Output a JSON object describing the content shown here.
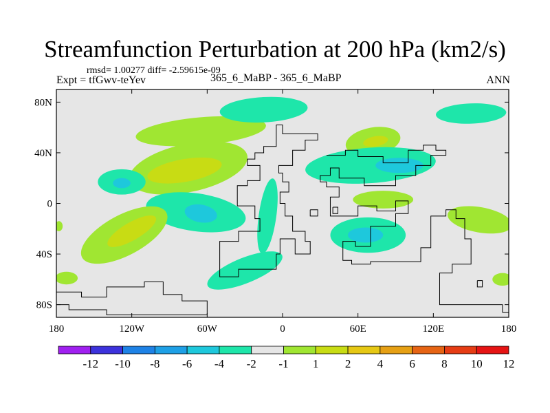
{
  "chart_data": {
    "type": "contour-map",
    "title": "Streamfunction Perturbation at 200 hPa (km2/s)",
    "stats_line": "rmsd= 1.00277 diff= -2.59615e-09",
    "experiment_label": "Expt = tfGwv-teYev",
    "center_label": "365_6_MaBP - 365_6_MaBP",
    "season_label": "ANN",
    "x_axis": {
      "range": [
        -180,
        180
      ],
      "ticks": [
        {
          "value": -180,
          "label": "180"
        },
        {
          "value": -120,
          "label": "120W"
        },
        {
          "value": -60,
          "label": "60W"
        },
        {
          "value": 0,
          "label": "0"
        },
        {
          "value": 60,
          "label": "60E"
        },
        {
          "value": 120,
          "label": "120E"
        },
        {
          "value": 180,
          "label": "180"
        }
      ]
    },
    "y_axis": {
      "range": [
        -90,
        90
      ],
      "ticks": [
        {
          "value": 80,
          "label": "80N"
        },
        {
          "value": 40,
          "label": "40N"
        },
        {
          "value": 0,
          "label": "0"
        },
        {
          "value": -40,
          "label": "40S"
        },
        {
          "value": -80,
          "label": "80S"
        }
      ]
    },
    "colorbar": {
      "colors": [
        "#a020f0",
        "#3c32dc",
        "#1e82e6",
        "#1ea0e6",
        "#1ec8dc",
        "#1ee6aa",
        "#e6e6e6",
        "#a0e632",
        "#c8dc14",
        "#e6c814",
        "#e6a014",
        "#e66414",
        "#e63c14",
        "#e61414"
      ],
      "labels": [
        "-12",
        "-10",
        "-8",
        "-6",
        "-4",
        "-2",
        "-1",
        "1",
        "2",
        "4",
        "6",
        "8",
        "10",
        "12"
      ]
    },
    "regions": [
      {
        "name": "green-north-atlantic",
        "level": "1..2",
        "color": "#a0e632",
        "cx": -65,
        "cy": 57,
        "rx": 52,
        "ry": 11,
        "angle": -5
      },
      {
        "name": "teal-north-pacific-arc",
        "level": "-1..-2",
        "color": "#1ee6aa",
        "cx": -15,
        "cy": 74,
        "rx": 35,
        "ry": 10,
        "angle": -3
      },
      {
        "name": "green-central-band",
        "level": "1..2",
        "color": "#a0e632",
        "cx": -75,
        "cy": 28,
        "rx": 48,
        "ry": 19,
        "angle": -12
      },
      {
        "name": "yellow-central-core",
        "level": "2..4",
        "color": "#c8dc14",
        "cx": -78,
        "cy": 26,
        "rx": 30,
        "ry": 9,
        "angle": -10
      },
      {
        "name": "teal-west-blob",
        "level": "-1..-2",
        "color": "#1ee6aa",
        "cx": -128,
        "cy": 17,
        "rx": 19,
        "ry": 10,
        "angle": 0
      },
      {
        "name": "cyan-west-core",
        "level": "-2..-4",
        "color": "#1ec8dc",
        "cx": -128,
        "cy": 16,
        "rx": 7,
        "ry": 4,
        "angle": 0
      },
      {
        "name": "teal-equatorial",
        "level": "-1..-2",
        "color": "#1ee6aa",
        "cx": -69,
        "cy": -7,
        "rx": 40,
        "ry": 15,
        "angle": 8
      },
      {
        "name": "cyan-equatorial-core",
        "level": "-2..-4",
        "color": "#1ec8dc",
        "cx": -65,
        "cy": -8,
        "rx": 13,
        "ry": 7,
        "angle": 10
      },
      {
        "name": "green-southwest",
        "level": "1..2",
        "color": "#a0e632",
        "cx": -126,
        "cy": -25,
        "rx": 38,
        "ry": 16,
        "angle": -28
      },
      {
        "name": "yellow-southwest-core",
        "level": "2..4",
        "color": "#c8dc14",
        "cx": -120,
        "cy": -22,
        "rx": 22,
        "ry": 7,
        "angle": -30
      },
      {
        "name": "teal-atlantic-band",
        "level": "-1..-2",
        "color": "#1ee6aa",
        "cx": -12,
        "cy": -10,
        "rx": 7,
        "ry": 30,
        "angle": 8
      },
      {
        "name": "teal-south-atlantic",
        "level": "-1..-2",
        "color": "#1ee6aa",
        "cx": -30,
        "cy": -53,
        "rx": 32,
        "ry": 10,
        "angle": -22
      },
      {
        "name": "green-east-north",
        "level": "1..2",
        "color": "#a0e632",
        "cx": 72,
        "cy": 49,
        "rx": 22,
        "ry": 11,
        "angle": -10
      },
      {
        "name": "yellow-east-north-core",
        "level": "2..4",
        "color": "#c8dc14",
        "cx": 74,
        "cy": 49,
        "rx": 10,
        "ry": 4,
        "angle": -10
      },
      {
        "name": "teal-east-asia",
        "level": "-1..-2",
        "color": "#1ee6aa",
        "cx": 70,
        "cy": 30,
        "rx": 52,
        "ry": 14,
        "angle": -4
      },
      {
        "name": "cyan-east-asia-core",
        "level": "-2..-4",
        "color": "#1ec8dc",
        "cx": 93,
        "cy": 30,
        "rx": 19,
        "ry": 6,
        "angle": 0
      },
      {
        "name": "teal-north-east-arc",
        "level": "-1..-2",
        "color": "#1ee6aa",
        "cx": 150,
        "cy": 71,
        "rx": 28,
        "ry": 8,
        "angle": -2
      },
      {
        "name": "green-indian",
        "level": "1..2",
        "color": "#a0e632",
        "cx": 80,
        "cy": 3,
        "rx": 24,
        "ry": 7,
        "angle": 0
      },
      {
        "name": "teal-indian-south",
        "level": "-1..-2",
        "color": "#1ee6aa",
        "cx": 68,
        "cy": -25,
        "rx": 30,
        "ry": 14,
        "angle": 0
      },
      {
        "name": "cyan-indian-south-core",
        "level": "-2..-4",
        "color": "#1ec8dc",
        "cx": 66,
        "cy": -25,
        "rx": 14,
        "ry": 6,
        "angle": 0
      },
      {
        "name": "green-australia-east",
        "level": "1..2",
        "color": "#a0e632",
        "cx": 157,
        "cy": -13,
        "rx": 26,
        "ry": 10,
        "angle": 10
      },
      {
        "name": "green-left-edge",
        "level": "1..2",
        "color": "#a0e632",
        "cx": -178,
        "cy": -18,
        "rx": 3,
        "ry": 4,
        "angle": 0
      },
      {
        "name": "green-southwest-edge",
        "level": "1..2",
        "color": "#a0e632",
        "cx": -172,
        "cy": -59,
        "rx": 9,
        "ry": 5,
        "angle": 0
      },
      {
        "name": "green-southeast-edge",
        "level": "1..2",
        "color": "#a0e632",
        "cx": 175,
        "cy": -60,
        "rx": 8,
        "ry": 5,
        "angle": 0
      }
    ],
    "coastlines": [
      {
        "name": "coastline-americas",
        "points": [
          [
            -5,
            51
          ],
          [
            -5,
            45
          ],
          [
            -15,
            45
          ],
          [
            -15,
            40
          ],
          [
            -22,
            40
          ],
          [
            -22,
            35
          ],
          [
            -28,
            35
          ],
          [
            -28,
            30
          ],
          [
            -18,
            30
          ],
          [
            -18,
            18
          ],
          [
            -28,
            18
          ],
          [
            -28,
            14
          ],
          [
            -36,
            14
          ],
          [
            -36,
            -2
          ],
          [
            -22,
            -2
          ],
          [
            -22,
            -12
          ],
          [
            -18,
            -12
          ],
          [
            -18,
            -22
          ],
          [
            -35,
            -22
          ],
          [
            -35,
            -30
          ],
          [
            -50,
            -30
          ],
          [
            -50,
            -58
          ],
          [
            -35,
            -58
          ],
          [
            -35,
            -52
          ],
          [
            -5,
            -52
          ],
          [
            -5,
            -40
          ],
          [
            -2,
            -40
          ],
          [
            -2,
            -28
          ],
          [
            10,
            -28
          ],
          [
            10,
            -40
          ],
          [
            22,
            -40
          ],
          [
            22,
            -30
          ],
          [
            18,
            -30
          ],
          [
            18,
            -22
          ],
          [
            8,
            -22
          ],
          [
            8,
            -10
          ],
          [
            2,
            -10
          ],
          [
            2,
            0
          ],
          [
            -2,
            0
          ],
          [
            -2,
            9
          ],
          [
            5,
            9
          ],
          [
            5,
            17
          ],
          [
            0,
            17
          ],
          [
            0,
            24
          ],
          [
            -3,
            24
          ],
          [
            -3,
            30
          ],
          [
            8,
            30
          ],
          [
            8,
            42
          ],
          [
            18,
            42
          ],
          [
            18,
            50
          ],
          [
            28,
            50
          ],
          [
            28,
            55
          ],
          [
            0,
            55
          ],
          [
            0,
            62
          ],
          [
            -5,
            62
          ],
          [
            -5,
            51
          ]
        ]
      },
      {
        "name": "coastline-africa-asia",
        "points": [
          [
            35,
            38
          ],
          [
            50,
            38
          ],
          [
            50,
            42
          ],
          [
            60,
            42
          ],
          [
            60,
            37
          ],
          [
            80,
            37
          ],
          [
            80,
            32
          ],
          [
            100,
            32
          ],
          [
            100,
            42
          ],
          [
            112,
            42
          ],
          [
            112,
            46
          ],
          [
            122,
            46
          ],
          [
            122,
            42
          ],
          [
            130,
            42
          ],
          [
            130,
            38
          ],
          [
            118,
            38
          ],
          [
            118,
            30
          ],
          [
            106,
            30
          ],
          [
            106,
            22
          ],
          [
            90,
            22
          ],
          [
            90,
            14
          ],
          [
            65,
            14
          ],
          [
            65,
            20
          ],
          [
            45,
            20
          ],
          [
            45,
            28
          ],
          [
            38,
            28
          ],
          [
            38,
            22
          ],
          [
            30,
            22
          ],
          [
            30,
            17
          ],
          [
            35,
            17
          ],
          [
            35,
            13
          ],
          [
            45,
            13
          ],
          [
            45,
            5
          ],
          [
            38,
            5
          ],
          [
            38,
            -10
          ],
          [
            60,
            -10
          ],
          [
            60,
            -2
          ],
          [
            75,
            -2
          ],
          [
            75,
            -6
          ],
          [
            90,
            -6
          ],
          [
            90,
            2
          ],
          [
            100,
            2
          ],
          [
            100,
            -8
          ],
          [
            90,
            -8
          ],
          [
            90,
            -18
          ],
          [
            70,
            -18
          ],
          [
            70,
            -34
          ],
          [
            58,
            -34
          ],
          [
            58,
            -30
          ],
          [
            48,
            -30
          ],
          [
            48,
            -45
          ],
          [
            55,
            -45
          ],
          [
            55,
            -48
          ],
          [
            70,
            -48
          ],
          [
            70,
            -46
          ],
          [
            110,
            -46
          ],
          [
            110,
            -35
          ],
          [
            118,
            -35
          ],
          [
            118,
            -10
          ],
          [
            130,
            -10
          ],
          [
            130,
            -5
          ],
          [
            138,
            -5
          ],
          [
            138,
            -12
          ],
          [
            145,
            -12
          ],
          [
            145,
            -28
          ],
          [
            150,
            -28
          ],
          [
            150,
            -48
          ],
          [
            135,
            -48
          ],
          [
            135,
            -55
          ],
          [
            125,
            -55
          ],
          [
            125,
            -80
          ],
          [
            175,
            -80
          ],
          [
            175,
            -86
          ],
          [
            180,
            -86
          ]
        ]
      },
      {
        "name": "coastline-antarctica",
        "points": [
          [
            -180,
            -70
          ],
          [
            -160,
            -70
          ],
          [
            -160,
            -74
          ],
          [
            -140,
            -74
          ],
          [
            -140,
            -66
          ],
          [
            -110,
            -66
          ],
          [
            -110,
            -62
          ],
          [
            -95,
            -62
          ],
          [
            -95,
            -72
          ],
          [
            -80,
            -72
          ],
          [
            -80,
            -77
          ],
          [
            -60,
            -77
          ],
          [
            -60,
            -88
          ]
        ]
      },
      {
        "name": "coastline-antarctica-south",
        "points": [
          [
            -180,
            -80
          ],
          [
            -170,
            -80
          ],
          [
            -170,
            -84
          ],
          [
            -140,
            -84
          ],
          [
            -140,
            -88
          ],
          [
            -60,
            -88
          ]
        ]
      },
      {
        "name": "coastline-islands-a",
        "points": [
          [
            22,
            -5
          ],
          [
            28,
            -5
          ],
          [
            28,
            -10
          ],
          [
            22,
            -10
          ],
          [
            22,
            -5
          ]
        ]
      },
      {
        "name": "coastline-islands-b",
        "points": [
          [
            40,
            -3
          ],
          [
            44,
            -3
          ],
          [
            44,
            -8
          ],
          [
            40,
            -8
          ],
          [
            40,
            -3
          ]
        ]
      },
      {
        "name": "coastline-islands-c",
        "points": [
          [
            155,
            -61
          ],
          [
            159,
            -61
          ],
          [
            159,
            -66
          ],
          [
            155,
            -66
          ],
          [
            155,
            -61
          ]
        ]
      }
    ]
  }
}
